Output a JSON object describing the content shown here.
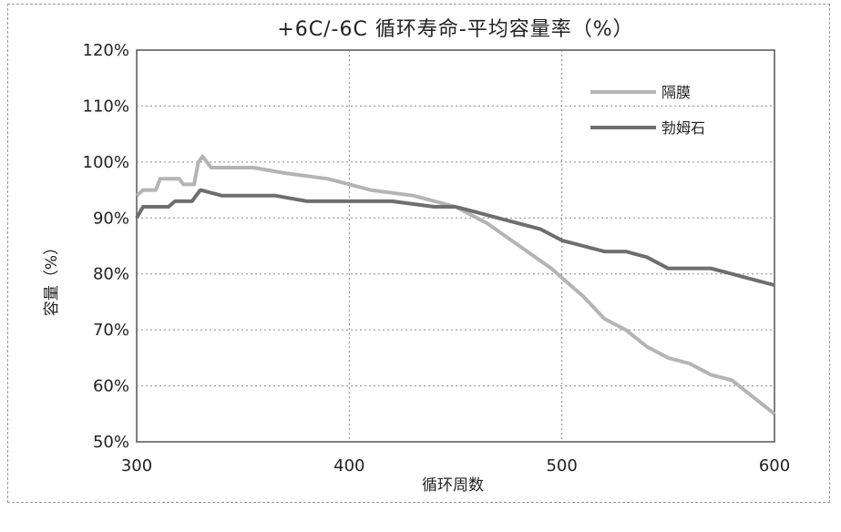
{
  "chart_data": {
    "type": "line",
    "title": "+6C/-6C 循环寿命-平均容量率（%）",
    "xlabel": "循环周数",
    "ylabel": "容量（%）",
    "xlim": [
      300,
      600
    ],
    "ylim": [
      50,
      120
    ],
    "x_ticks": [
      "300",
      "400",
      "500",
      "600"
    ],
    "y_ticks": [
      "50%",
      "60%",
      "70%",
      "80%",
      "90%",
      "100%",
      "110%",
      "120%"
    ],
    "grid": true,
    "legend_position": "top-right",
    "series": [
      {
        "name": "隔膜",
        "color": "#b4b4b4",
        "points": [
          [
            300,
            94
          ],
          [
            303,
            95
          ],
          [
            309,
            95
          ],
          [
            311,
            97
          ],
          [
            320,
            97
          ],
          [
            322,
            96
          ],
          [
            327,
            96
          ],
          [
            329,
            100
          ],
          [
            331,
            101
          ],
          [
            335,
            99
          ],
          [
            345,
            99
          ],
          [
            355,
            99
          ],
          [
            370,
            98
          ],
          [
            390,
            97
          ],
          [
            410,
            95
          ],
          [
            430,
            94
          ],
          [
            450,
            92
          ],
          [
            465,
            89
          ],
          [
            480,
            85
          ],
          [
            495,
            81
          ],
          [
            510,
            76
          ],
          [
            520,
            72
          ],
          [
            530,
            70
          ],
          [
            540,
            67
          ],
          [
            550,
            65
          ],
          [
            560,
            64
          ],
          [
            570,
            62
          ],
          [
            580,
            61
          ],
          [
            590,
            58
          ],
          [
            600,
            55
          ]
        ]
      },
      {
        "name": "勃姆石",
        "color": "#6e6e6e",
        "points": [
          [
            300,
            90
          ],
          [
            303,
            92
          ],
          [
            310,
            92
          ],
          [
            315,
            92
          ],
          [
            318,
            93
          ],
          [
            322,
            93
          ],
          [
            326,
            93
          ],
          [
            328,
            94
          ],
          [
            330,
            95
          ],
          [
            340,
            94
          ],
          [
            350,
            94
          ],
          [
            365,
            94
          ],
          [
            380,
            93
          ],
          [
            400,
            93
          ],
          [
            420,
            93
          ],
          [
            440,
            92
          ],
          [
            450,
            92
          ],
          [
            460,
            91
          ],
          [
            470,
            90
          ],
          [
            480,
            89
          ],
          [
            490,
            88
          ],
          [
            500,
            86
          ],
          [
            510,
            85
          ],
          [
            520,
            84
          ],
          [
            530,
            84
          ],
          [
            540,
            83
          ],
          [
            550,
            81
          ],
          [
            560,
            81
          ],
          [
            570,
            81
          ],
          [
            580,
            80
          ],
          [
            590,
            79
          ],
          [
            600,
            78
          ]
        ]
      }
    ]
  }
}
